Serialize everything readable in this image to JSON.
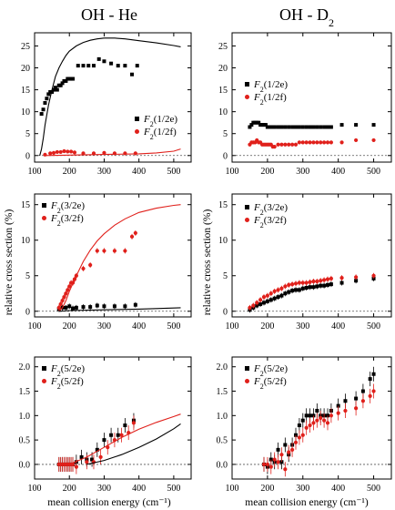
{
  "column_titles": [
    "OH - He",
    "OH - D2"
  ],
  "ylabel": "relative cross section (%)",
  "xlabel": "mean collision energy (cm⁻¹)",
  "colors": {
    "black": "#000000",
    "red": "#e0201b",
    "dashed": "#555555"
  },
  "chart_data": [
    {
      "type": "scatter",
      "id": "he-1-2",
      "xlim": [
        100,
        550
      ],
      "ylim": [
        -1.5,
        28
      ],
      "xticks": [
        100,
        200,
        300,
        400,
        500
      ],
      "yticks": [
        0,
        5,
        10,
        15,
        20,
        25
      ],
      "legend_position": "bottom-right",
      "series": [
        {
          "name": "F2(1/2e)",
          "sub": "2",
          "paren": "(1/2e)",
          "color": "black",
          "marker": "square",
          "x": [
            120,
            125,
            130,
            135,
            140,
            145,
            150,
            155,
            160,
            165,
            170,
            175,
            180,
            185,
            190,
            195,
            200,
            205,
            210,
            225,
            240,
            255,
            270,
            285,
            300,
            320,
            340,
            360,
            380,
            395
          ],
          "y": [
            9.5,
            10.5,
            12,
            13,
            14,
            14.5,
            14.5,
            15,
            15.5,
            15,
            16,
            16,
            16.5,
            17,
            17,
            17.5,
            17.5,
            17.5,
            17.5,
            20.5,
            20.5,
            20.5,
            20.5,
            22,
            21.5,
            21,
            20.5,
            20.5,
            18.5,
            20.5
          ]
        },
        {
          "name": "F2(1/2f)",
          "sub": "2",
          "paren": "(1/2f)",
          "color": "red",
          "marker": "circle",
          "x": [
            130,
            145,
            155,
            165,
            175,
            185,
            195,
            205,
            215,
            240,
            270,
            300,
            330,
            360,
            390
          ],
          "y": [
            0.2,
            0.5,
            0.6,
            0.8,
            0.8,
            1.0,
            0.9,
            0.9,
            0.7,
            0.5,
            0.5,
            0.6,
            0.5,
            0.5,
            0.5
          ]
        },
        {
          "name": "",
          "color": "black",
          "style": "line",
          "x": [
            115,
            120,
            125,
            130,
            140,
            150,
            160,
            170,
            180,
            190,
            200,
            220,
            240,
            260,
            280,
            300,
            330,
            360,
            400,
            450,
            500,
            520
          ],
          "y": [
            0,
            1.5,
            4,
            7,
            11.5,
            15,
            18,
            20,
            21.5,
            22.8,
            23.8,
            25,
            25.8,
            26.3,
            26.6,
            26.8,
            26.8,
            26.6,
            26.2,
            25.7,
            25.1,
            24.8
          ]
        },
        {
          "name": "",
          "color": "red",
          "style": "line",
          "x": [
            130,
            200,
            300,
            400,
            450,
            500,
            520
          ],
          "y": [
            0,
            0.1,
            0.25,
            0.4,
            0.6,
            1.0,
            1.5
          ]
        }
      ]
    },
    {
      "type": "scatter",
      "id": "d2-1-2",
      "xlim": [
        100,
        550
      ],
      "ylim": [
        -1.5,
        28
      ],
      "xticks": [
        100,
        200,
        300,
        400,
        500
      ],
      "yticks": [
        0,
        5,
        10,
        15,
        20,
        25
      ],
      "legend_position": "top-right",
      "series": [
        {
          "name": "F2(1/2e)",
          "sub": "2",
          "paren": "(1/2e)",
          "color": "black",
          "marker": "square",
          "x": [
            150,
            155,
            160,
            165,
            170,
            175,
            180,
            185,
            190,
            195,
            200,
            205,
            210,
            215,
            220,
            230,
            240,
            250,
            260,
            270,
            280,
            290,
            300,
            310,
            320,
            330,
            340,
            350,
            360,
            370,
            380,
            410,
            450,
            500
          ],
          "y": [
            6.5,
            7,
            7.5,
            7.5,
            7.5,
            7.5,
            7,
            7,
            7,
            7,
            6.5,
            6.5,
            6.5,
            6.5,
            6.5,
            6.5,
            6.5,
            6.5,
            6.5,
            6.5,
            6.5,
            6.5,
            6.5,
            6.5,
            6.5,
            6.5,
            6.5,
            6.5,
            6.5,
            6.5,
            6.5,
            7,
            7,
            7
          ]
        },
        {
          "name": "F2(1/2f)",
          "sub": "2",
          "paren": "(1/2f)",
          "color": "red",
          "marker": "circle",
          "x": [
            150,
            155,
            160,
            165,
            170,
            175,
            180,
            185,
            190,
            195,
            200,
            205,
            210,
            215,
            220,
            230,
            240,
            250,
            260,
            270,
            280,
            290,
            300,
            310,
            320,
            330,
            340,
            350,
            360,
            370,
            380,
            410,
            450,
            500
          ],
          "y": [
            2.5,
            3,
            3,
            3,
            3.5,
            3,
            3,
            2.5,
            2.5,
            2.5,
            2.5,
            2.5,
            2.5,
            2,
            2,
            2.5,
            2.5,
            2.5,
            2.5,
            2.5,
            2.5,
            3,
            3,
            3,
            3,
            3,
            3,
            3,
            3,
            3,
            3,
            3,
            3.5,
            3.5
          ]
        }
      ]
    },
    {
      "type": "scatter",
      "id": "he-3-2",
      "xlim": [
        100,
        550
      ],
      "ylim": [
        -0.8,
        16.5
      ],
      "xticks": [
        100,
        200,
        300,
        400,
        500
      ],
      "yticks": [
        0,
        5,
        10,
        15
      ],
      "legend_position": "top-left",
      "series": [
        {
          "name": "F2(3/2e)",
          "sub": "2",
          "paren": "(3/2e)",
          "color": "black",
          "marker": "square",
          "x": [
            170,
            180,
            190,
            200,
            210,
            220,
            240,
            260,
            280,
            300,
            330,
            360,
            390
          ],
          "y": [
            0.3,
            0.5,
            0.5,
            0.7,
            0.4,
            0.5,
            0.6,
            0.6,
            0.8,
            0.7,
            0.7,
            0.7,
            0.9
          ]
        },
        {
          "name": "F2(3/2f)",
          "sub": "2",
          "paren": "(3/2f)",
          "color": "red",
          "marker": "circle",
          "x": [
            170,
            175,
            180,
            185,
            190,
            195,
            200,
            205,
            210,
            215,
            220,
            240,
            260,
            280,
            300,
            330,
            360,
            380,
            390
          ],
          "y": [
            0.5,
            1,
            1.5,
            2,
            2.5,
            3,
            3.5,
            4,
            4,
            4.5,
            5,
            6,
            6.5,
            8.5,
            8.5,
            8.5,
            8.5,
            10.5,
            11
          ]
        },
        {
          "name": "",
          "color": "red",
          "style": "line",
          "x": [
            170,
            180,
            190,
            200,
            220,
            240,
            260,
            280,
            300,
            330,
            360,
            400,
            450,
            500,
            520
          ],
          "y": [
            0,
            0.5,
            1.5,
            2.8,
            5,
            7,
            8.6,
            9.9,
            10.9,
            12.1,
            13,
            13.9,
            14.5,
            14.9,
            15
          ]
        },
        {
          "name": "",
          "color": "black",
          "style": "line",
          "x": [
            170,
            200,
            300,
            400,
            500,
            520
          ],
          "y": [
            0,
            0.1,
            0.2,
            0.3,
            0.45,
            0.5
          ]
        }
      ]
    },
    {
      "type": "scatter",
      "id": "d2-3-2",
      "xlim": [
        100,
        550
      ],
      "ylim": [
        -0.8,
        16.5
      ],
      "xticks": [
        100,
        200,
        300,
        400,
        500
      ],
      "yticks": [
        0,
        5,
        10,
        15
      ],
      "legend_position": "top-right",
      "series": [
        {
          "name": "F2(3/2e)",
          "sub": "2",
          "paren": "(3/2e)",
          "color": "black",
          "marker": "square",
          "x": [
            150,
            160,
            170,
            180,
            190,
            200,
            210,
            220,
            230,
            240,
            250,
            260,
            270,
            280,
            290,
            300,
            310,
            320,
            330,
            340,
            350,
            360,
            370,
            380,
            410,
            450,
            500
          ],
          "y": [
            0.2,
            0.5,
            0.8,
            1,
            1.2,
            1.4,
            1.6,
            1.8,
            2,
            2.2,
            2.5,
            2.7,
            2.9,
            3,
            3,
            3.2,
            3.3,
            3.4,
            3.4,
            3.5,
            3.6,
            3.6,
            3.7,
            3.8,
            4,
            4.3,
            4.6
          ]
        },
        {
          "name": "F2(3/2f)",
          "sub": "2",
          "paren": "(3/2f)",
          "color": "red",
          "marker": "circle",
          "x": [
            150,
            160,
            170,
            180,
            190,
            200,
            210,
            220,
            230,
            240,
            250,
            260,
            270,
            280,
            290,
            300,
            310,
            320,
            330,
            340,
            350,
            360,
            370,
            380,
            410,
            450,
            500
          ],
          "y": [
            0.5,
            0.8,
            1.2,
            1.6,
            2,
            2.2,
            2.5,
            2.8,
            3,
            3.2,
            3.5,
            3.7,
            3.8,
            3.9,
            4,
            4,
            4,
            4.1,
            4.2,
            4.2,
            4.3,
            4.4,
            4.5,
            4.6,
            4.7,
            4.8,
            5
          ]
        }
      ]
    },
    {
      "type": "scatter",
      "id": "he-5-2",
      "xlim": [
        100,
        550
      ],
      "ylim": [
        -0.3,
        2.2
      ],
      "xticks": [
        100,
        200,
        300,
        400,
        500
      ],
      "yticks": [
        0.0,
        0.5,
        1.0,
        1.5,
        2.0
      ],
      "legend_position": "top-left",
      "series": [
        {
          "name": "F2(5/2e)",
          "sub": "2",
          "paren": "(5/2e)",
          "color": "black",
          "marker": "square",
          "x": [
            170,
            175,
            180,
            185,
            190,
            195,
            200,
            205,
            210,
            220,
            235,
            250,
            265,
            280,
            300,
            320,
            340,
            360,
            385
          ],
          "y": [
            0,
            0,
            0,
            0,
            0,
            0,
            0,
            0,
            0,
            0.05,
            0.15,
            0.1,
            0.1,
            0.3,
            0.5,
            0.6,
            0.6,
            0.8,
            0.9
          ]
        },
        {
          "name": "F2(5/2f)",
          "sub": "2",
          "paren": "(5/2f)",
          "color": "red",
          "marker": "circle",
          "x": [
            170,
            175,
            180,
            185,
            190,
            195,
            200,
            205,
            210,
            220,
            250,
            270,
            290,
            310,
            330,
            350,
            370,
            385
          ],
          "y": [
            0,
            0,
            0,
            0,
            0,
            0,
            0,
            0,
            0,
            -0.05,
            0.05,
            0.05,
            0.15,
            0.35,
            0.5,
            0.6,
            0.65,
            0.85
          ]
        },
        {
          "name": "",
          "color": "red",
          "style": "line",
          "x": [
            200,
            250,
            300,
            350,
            400,
            450,
            500,
            520
          ],
          "y": [
            0,
            0.15,
            0.35,
            0.55,
            0.72,
            0.86,
            0.98,
            1.03
          ]
        },
        {
          "name": "",
          "color": "black",
          "style": "line",
          "x": [
            250,
            300,
            350,
            400,
            450,
            500,
            520
          ],
          "y": [
            0,
            0.08,
            0.2,
            0.35,
            0.52,
            0.73,
            0.83
          ]
        }
      ]
    },
    {
      "type": "scatter",
      "id": "d2-5-2",
      "xlim": [
        100,
        550
      ],
      "ylim": [
        -0.3,
        2.2
      ],
      "xticks": [
        100,
        200,
        300,
        400,
        500
      ],
      "yticks": [
        0.0,
        0.5,
        1.0,
        1.5,
        2.0
      ],
      "legend_position": "top-left",
      "series": [
        {
          "name": "F2(5/2e)",
          "sub": "2",
          "paren": "(5/2e)",
          "color": "black",
          "marker": "square",
          "x": [
            190,
            200,
            210,
            220,
            230,
            240,
            250,
            260,
            270,
            280,
            290,
            300,
            310,
            320,
            330,
            340,
            350,
            360,
            370,
            380,
            400,
            420,
            450,
            470,
            490,
            500
          ],
          "y": [
            0,
            -0.05,
            0.1,
            0.05,
            0.3,
            0.05,
            0.4,
            0.2,
            0.4,
            0.6,
            0.8,
            0.9,
            1.0,
            1.0,
            1.0,
            1.1,
            1.0,
            1.0,
            1.0,
            1.1,
            1.2,
            1.3,
            1.35,
            1.5,
            1.75,
            1.85
          ]
        },
        {
          "name": "F2(5/2f)",
          "sub": "2",
          "paren": "(5/2f)",
          "color": "red",
          "marker": "circle",
          "x": [
            190,
            200,
            210,
            220,
            230,
            240,
            250,
            260,
            270,
            280,
            290,
            300,
            310,
            320,
            330,
            340,
            350,
            360,
            370,
            380,
            400,
            420,
            450,
            470,
            490,
            500
          ],
          "y": [
            0,
            0,
            -0.05,
            0.1,
            0.05,
            0.2,
            -0.1,
            0.25,
            0.3,
            0.45,
            0.55,
            0.6,
            0.75,
            0.8,
            0.85,
            0.9,
            0.95,
            0.9,
            0.85,
            1.0,
            1.05,
            1.1,
            1.15,
            1.3,
            1.4,
            1.5
          ]
        }
      ]
    }
  ]
}
